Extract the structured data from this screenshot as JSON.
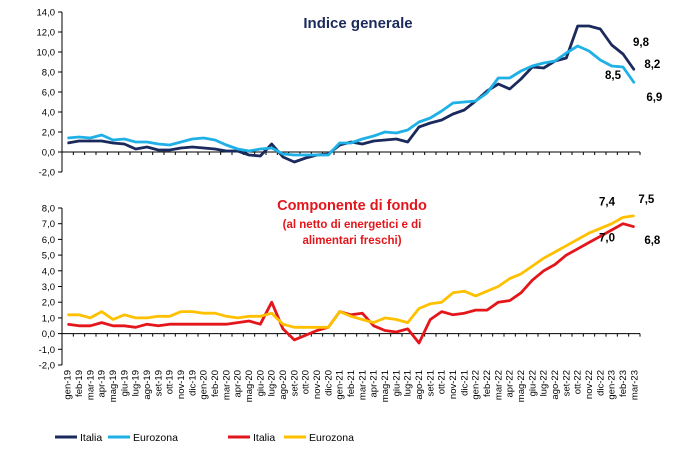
{
  "chart_data": [
    {
      "type": "line",
      "title": "Indice generale",
      "ylim": [
        -2,
        14
      ],
      "yticks": [
        "-2,0",
        "0,0",
        "2,0",
        "4,0",
        "6,0",
        "8,0",
        "10,0",
        "12,0",
        "14,0"
      ],
      "x": [
        "gen-19",
        "feb-19",
        "mar-19",
        "apr-19",
        "mag-19",
        "giu-19",
        "lug-19",
        "ago-19",
        "set-19",
        "ott-19",
        "nov-19",
        "dic-19",
        "gen-20",
        "feb-20",
        "mar-20",
        "apr-20",
        "mag-20",
        "giu-20",
        "lug-20",
        "ago-20",
        "set-20",
        "ott-20",
        "nov-20",
        "dic-20",
        "gen-21",
        "feb-21",
        "mar-21",
        "apr-21",
        "mag-21",
        "giu-21",
        "lug-21",
        "ago-21",
        "set-21",
        "ott-21",
        "nov-21",
        "dic-21",
        "gen-22",
        "feb-22",
        "mar-22",
        "apr-22",
        "mag-22",
        "giu-22",
        "lug-22",
        "ago-22",
        "set-22",
        "ott-22",
        "nov-22",
        "dic-22",
        "gen-23",
        "feb-23",
        "mar-23"
      ],
      "series": [
        {
          "name": "Italia",
          "color": "#1b2a5c",
          "values": [
            0.9,
            1.1,
            1.1,
            1.1,
            0.9,
            0.8,
            0.3,
            0.5,
            0.2,
            0.2,
            0.4,
            0.5,
            0.4,
            0.3,
            0.1,
            0.1,
            -0.3,
            -0.4,
            0.8,
            -0.5,
            -1.0,
            -0.6,
            -0.3,
            -0.2,
            0.7,
            1.0,
            0.8,
            1.1,
            1.2,
            1.3,
            1.0,
            2.5,
            2.9,
            3.2,
            3.8,
            4.2,
            5.1,
            6.1,
            6.8,
            6.3,
            7.3,
            8.5,
            8.4,
            9.1,
            9.4,
            12.6,
            12.6,
            12.3,
            10.7,
            9.8,
            8.2
          ]
        },
        {
          "name": "Eurozona",
          "color": "#1fb0e6",
          "values": [
            1.4,
            1.5,
            1.4,
            1.7,
            1.2,
            1.3,
            1.0,
            1.0,
            0.8,
            0.7,
            1.0,
            1.3,
            1.4,
            1.2,
            0.7,
            0.3,
            0.1,
            0.3,
            0.4,
            -0.2,
            -0.3,
            -0.3,
            -0.3,
            -0.3,
            0.9,
            0.9,
            1.3,
            1.6,
            2.0,
            1.9,
            2.2,
            3.0,
            3.4,
            4.1,
            4.9,
            5.0,
            5.1,
            5.9,
            7.4,
            7.4,
            8.1,
            8.6,
            8.9,
            9.1,
            9.9,
            10.6,
            10.1,
            9.2,
            8.6,
            8.5,
            6.9
          ]
        }
      ],
      "annotations": [
        {
          "text": "9,8",
          "series": "Italia",
          "index": 49
        },
        {
          "text": "8,2",
          "series": "Italia",
          "index": 50
        },
        {
          "text": "8,5",
          "series": "Eurozona",
          "index": 49
        },
        {
          "text": "6,9",
          "series": "Eurozona",
          "index": 50
        }
      ]
    },
    {
      "type": "line",
      "title": "Componente di fondo",
      "subtitle_lines": [
        "(al netto di energetici e di",
        "alimentari freschi)"
      ],
      "ylim": [
        -2,
        8
      ],
      "yticks": [
        "-2,0",
        "-1,0",
        "0,0",
        "1,0",
        "2,0",
        "3,0",
        "4,0",
        "5,0",
        "6,0",
        "7,0",
        "8,0"
      ],
      "x": [
        "gen-19",
        "feb-19",
        "mar-19",
        "apr-19",
        "mag-19",
        "giu-19",
        "lug-19",
        "ago-19",
        "set-19",
        "ott-19",
        "nov-19",
        "dic-19",
        "gen-20",
        "feb-20",
        "mar-20",
        "apr-20",
        "mag-20",
        "giu-20",
        "lug-20",
        "ago-20",
        "set-20",
        "ott-20",
        "nov-20",
        "dic-20",
        "gen-21",
        "feb-21",
        "mar-21",
        "apr-21",
        "mag-21",
        "giu-21",
        "lug-21",
        "ago-21",
        "set-21",
        "ott-21",
        "nov-21",
        "dic-21",
        "gen-22",
        "feb-22",
        "mar-22",
        "apr-22",
        "mag-22",
        "giu-22",
        "lug-22",
        "ago-22",
        "set-22",
        "ott-22",
        "nov-22",
        "dic-22",
        "gen-23",
        "feb-23",
        "mar-23"
      ],
      "series": [
        {
          "name": "Italia",
          "color": "#e3161c",
          "values": [
            0.6,
            0.5,
            0.5,
            0.7,
            0.5,
            0.5,
            0.4,
            0.6,
            0.5,
            0.6,
            0.6,
            0.6,
            0.6,
            0.6,
            0.6,
            0.7,
            0.8,
            0.6,
            2.0,
            0.3,
            -0.4,
            -0.1,
            0.2,
            0.4,
            1.4,
            1.2,
            1.3,
            0.5,
            0.2,
            0.1,
            0.3,
            -0.6,
            0.9,
            1.4,
            1.2,
            1.3,
            1.5,
            1.5,
            2.0,
            2.1,
            2.6,
            3.4,
            4.0,
            4.4,
            5.0,
            5.4,
            5.8,
            6.2,
            6.6,
            7.0,
            6.8
          ]
        },
        {
          "name": "Eurozona",
          "color": "#ffc000",
          "values": [
            1.2,
            1.2,
            1.0,
            1.4,
            0.9,
            1.2,
            1.0,
            1.0,
            1.1,
            1.1,
            1.4,
            1.4,
            1.3,
            1.3,
            1.1,
            1.0,
            1.1,
            1.1,
            1.3,
            0.6,
            0.4,
            0.4,
            0.4,
            0.4,
            1.4,
            1.1,
            0.9,
            0.7,
            1.0,
            0.9,
            0.7,
            1.6,
            1.9,
            2.0,
            2.6,
            2.7,
            2.4,
            2.7,
            3.0,
            3.5,
            3.8,
            4.3,
            4.8,
            5.2,
            5.6,
            6.0,
            6.4,
            6.7,
            7.0,
            7.4,
            7.5
          ]
        }
      ],
      "annotations": [
        {
          "text": "7,4",
          "series": "Eurozona",
          "index": 49
        },
        {
          "text": "7,5",
          "series": "Eurozona",
          "index": 50
        },
        {
          "text": "7,0",
          "series": "Italia",
          "index": 49
        },
        {
          "text": "6,8",
          "series": "Italia",
          "index": 50
        }
      ]
    }
  ],
  "legend": [
    {
      "label": "Italia",
      "color": "#1b2a5c"
    },
    {
      "label": "Eurozona",
      "color": "#1fb0e6"
    },
    {
      "label": "Italia",
      "color": "#e3161c"
    },
    {
      "label": "Eurozona",
      "color": "#ffc000"
    }
  ]
}
